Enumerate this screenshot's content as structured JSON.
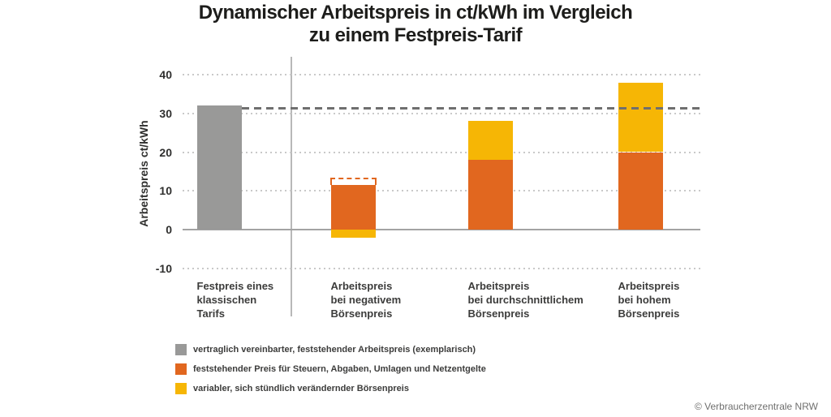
{
  "title": {
    "line1": "Dynamischer Arbeitspreis in ct/kWh im Vergleich",
    "line2": "zu einem Festpreis-Tarif"
  },
  "chart_data": {
    "type": "bar",
    "stacked": true,
    "title": "Dynamischer Arbeitspreis in ct/kWh im Vergleich zu einem Festpreis-Tarif",
    "ylabel": "Arbeitspreis ct/kWh",
    "ylim": [
      -10,
      40
    ],
    "yticks": [
      40,
      30,
      20,
      10,
      0,
      -10
    ],
    "grid": "horizontal-dotted",
    "legend_position": "bottom-left",
    "categories": [
      "Festpreis eines\nklassischen\nTarifs",
      "Arbeitspreis\nbei negativem\nBörsenpreis",
      "Arbeitspreis\nbei durchschnittlichem\nBörsenpreis",
      "Arbeitspreis\nbei hohem\nBörsenpreis"
    ],
    "series": [
      {
        "name": "vertraglich vereinbarter, feststehender Arbeitspreis (exemplarisch)",
        "color": "#999998",
        "values": [
          32,
          0,
          0,
          0
        ]
      },
      {
        "name": "feststehender Preis für Steuern, Abgaben, Umlagen und Netzentgelte",
        "color": "#e1671f",
        "values": [
          0,
          11.5,
          18,
          20
        ]
      },
      {
        "name": "variabler, sich stündlich verändernder Börsenpreis",
        "color": "#f6b605",
        "values": [
          0,
          -2,
          10,
          18
        ]
      }
    ],
    "reference_line": {
      "value": 31.5,
      "style": "dashed",
      "color": "#6f6f6f"
    },
    "annotation": {
      "category_index": 1,
      "type": "dashed-outline-box",
      "from": 11.5,
      "to": 13.5,
      "color": "#e1671f"
    }
  },
  "footer": {
    "copyright": "© Verbraucherzentrale NRW"
  }
}
